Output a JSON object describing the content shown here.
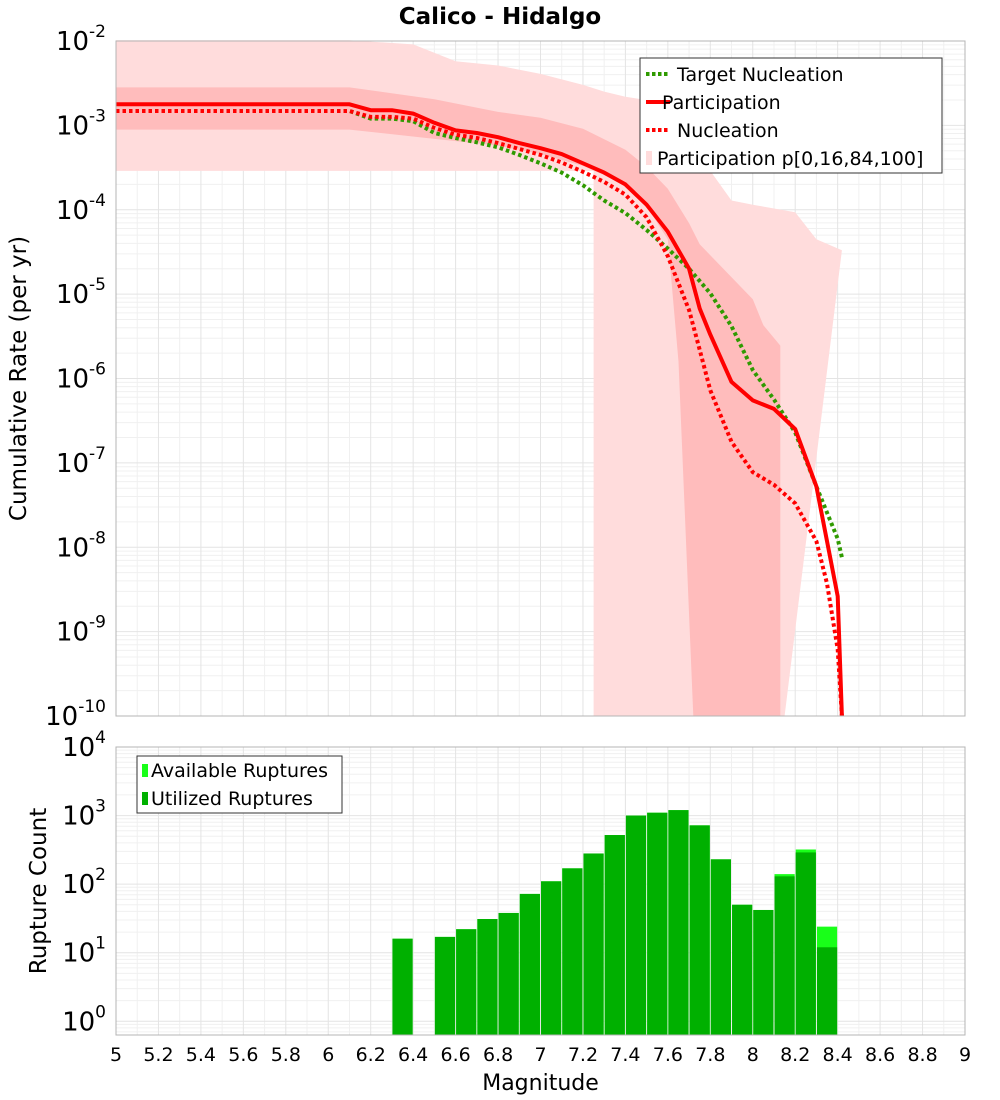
{
  "colors": {
    "target_nucleation": "#2f9a00",
    "participation": "#ff0000",
    "nucleation": "#ff0000",
    "band_outer": "#ffdcdc",
    "band_inner": "#ffbcbc",
    "available_bar": "#19ff19",
    "utilized_bar": "#00b000",
    "grid": "#e4e4e4",
    "grid_minor": "#f0f0f0",
    "plot_border": "#b4b4b4"
  },
  "chart_data": [
    {
      "type": "line",
      "title": "Calico - Hidalgo",
      "xlabel": "",
      "ylabel": "Cumulative Rate (per yr)",
      "xlim": [
        5,
        9
      ],
      "ylim_exp": [
        -10,
        -2
      ],
      "y_scale": "log",
      "y_tick_labels": [
        {
          "e": -2,
          "base": "10",
          "exp": "-2"
        },
        {
          "e": -3,
          "base": "10",
          "exp": "-3"
        },
        {
          "e": -4,
          "base": "10",
          "exp": "-4"
        },
        {
          "e": -5,
          "base": "10",
          "exp": "-5"
        },
        {
          "e": -6,
          "base": "10",
          "exp": "-6"
        },
        {
          "e": -7,
          "base": "10",
          "exp": "-7"
        },
        {
          "e": -8,
          "base": "10",
          "exp": "-8"
        },
        {
          "e": -9,
          "base": "10",
          "exp": "-9"
        },
        {
          "e": -10,
          "base": "10",
          "exp": "-10"
        }
      ],
      "grid": true,
      "legend_position": "top-right",
      "legend": [
        {
          "label": "Target Nucleation",
          "style": "dotted",
          "color_key": "target_nucleation"
        },
        {
          "label": "Participation",
          "style": "solid",
          "color_key": "participation"
        },
        {
          "label": "Nucleation",
          "style": "dotted",
          "color_key": "nucleation"
        },
        {
          "label": "Participation p[0,16,84,100]",
          "style": "band",
          "color_key": "band_outer"
        }
      ],
      "series": [
        {
          "name": "Participation",
          "style": "solid",
          "x": [
            5.0,
            6.1,
            6.2,
            6.3,
            6.4,
            6.5,
            6.6,
            6.7,
            6.8,
            6.9,
            7.0,
            7.1,
            7.2,
            7.3,
            7.4,
            7.5,
            7.6,
            7.7,
            7.75,
            7.8,
            7.9,
            8.0,
            8.1,
            8.2,
            8.3,
            8.4,
            8.42
          ],
          "y_exp": [
            -2.75,
            -2.75,
            -2.82,
            -2.82,
            -2.86,
            -2.97,
            -3.06,
            -3.09,
            -3.14,
            -3.21,
            -3.27,
            -3.34,
            -3.45,
            -3.56,
            -3.7,
            -3.94,
            -4.26,
            -4.7,
            -5.17,
            -5.48,
            -6.04,
            -6.26,
            -6.36,
            -6.6,
            -7.28,
            -8.58,
            -10.0
          ]
        },
        {
          "name": "Nucleation",
          "style": "dotted",
          "x": [
            5.0,
            6.1,
            6.2,
            6.3,
            6.4,
            6.5,
            6.6,
            6.7,
            6.8,
            6.9,
            7.0,
            7.1,
            7.2,
            7.3,
            7.4,
            7.5,
            7.6,
            7.7,
            7.75,
            7.8,
            7.9,
            8.0,
            8.1,
            8.2,
            8.3,
            8.35,
            8.4,
            8.42
          ],
          "y_exp": [
            -2.83,
            -2.83,
            -2.9,
            -2.9,
            -2.92,
            -3.03,
            -3.11,
            -3.15,
            -3.21,
            -3.28,
            -3.35,
            -3.44,
            -3.55,
            -3.67,
            -3.82,
            -4.09,
            -4.55,
            -5.19,
            -5.66,
            -6.14,
            -6.75,
            -7.11,
            -7.26,
            -7.48,
            -7.93,
            -8.43,
            -9.21,
            -10.0
          ]
        },
        {
          "name": "Target Nucleation",
          "style": "dotted",
          "x": [
            5.0,
            6.1,
            6.2,
            6.3,
            6.4,
            6.5,
            6.6,
            6.7,
            6.8,
            6.9,
            7.0,
            7.1,
            7.2,
            7.3,
            7.4,
            7.5,
            7.6,
            7.7,
            7.8,
            7.9,
            8.0,
            8.1,
            8.2,
            8.3,
            8.4,
            8.42
          ],
          "y_exp": [
            -2.83,
            -2.83,
            -2.92,
            -2.92,
            -2.95,
            -3.09,
            -3.15,
            -3.2,
            -3.26,
            -3.35,
            -3.45,
            -3.56,
            -3.71,
            -3.89,
            -4.04,
            -4.24,
            -4.46,
            -4.7,
            -4.99,
            -5.38,
            -5.9,
            -6.25,
            -6.64,
            -7.28,
            -7.9,
            -8.12
          ]
        }
      ],
      "bands": [
        {
          "name": "p0-p100",
          "shade": "outer",
          "x": [
            5.0,
            6.1,
            6.4,
            6.6,
            6.8,
            7.0,
            7.2,
            7.3,
            7.4,
            7.6,
            7.7,
            7.8,
            7.9,
            8.0,
            8.2,
            8.3,
            8.42
          ],
          "upper_exp": [
            -1.99,
            -1.99,
            -2.04,
            -2.24,
            -2.29,
            -2.39,
            -2.52,
            -2.6,
            -2.66,
            -2.74,
            -3.11,
            -3.54,
            -3.89,
            -3.94,
            -4.03,
            -4.35,
            -4.48
          ],
          "lower_x": [
            5.0,
            7.25,
            7.25,
            7.6,
            7.7,
            7.75,
            8.0,
            8.15,
            8.15
          ],
          "lower_exp": [
            -3.54,
            -3.54,
            -10.0,
            -10.0,
            -10.0,
            -10.0,
            -10.0,
            -10.0,
            -10.0
          ]
        },
        {
          "name": "p16-p84",
          "shade": "inner",
          "x": [
            5.0,
            6.1,
            6.5,
            6.8,
            7.0,
            7.2,
            7.4,
            7.5,
            7.6,
            7.7,
            7.75,
            8.0,
            8.05,
            8.13
          ],
          "upper_exp": [
            -2.55,
            -2.55,
            -2.69,
            -2.84,
            -2.91,
            -3.04,
            -3.29,
            -3.49,
            -3.75,
            -4.16,
            -4.41,
            -5.06,
            -5.37,
            -5.61
          ],
          "lower_x": [
            5.0,
            6.1,
            6.5,
            6.8,
            7.0,
            7.2,
            7.4,
            7.5,
            7.6,
            7.65,
            7.72,
            7.72,
            8.13,
            8.13
          ],
          "lower_exp": [
            -3.05,
            -3.05,
            -3.16,
            -3.24,
            -3.34,
            -3.48,
            -3.7,
            -3.96,
            -4.35,
            -5.8,
            -10.0,
            -10.0,
            -10.0,
            -10.0
          ]
        }
      ]
    },
    {
      "type": "bar",
      "title": "",
      "xlabel": "Magnitude",
      "ylabel": "Rupture Count",
      "xlim": [
        5,
        9
      ],
      "x_tick_labels": [
        "5",
        "5.2",
        "5.4",
        "5.6",
        "5.8",
        "6",
        "6.2",
        "6.4",
        "6.6",
        "6.8",
        "7",
        "7.2",
        "7.4",
        "7.6",
        "7.8",
        "8",
        "8.2",
        "8.4",
        "8.6",
        "8.8",
        "9"
      ],
      "ylim_exp": [
        -0.2,
        4
      ],
      "y_scale": "log",
      "y_tick_labels": [
        {
          "e": 4,
          "base": "10",
          "exp": "4"
        },
        {
          "e": 3,
          "base": "10",
          "exp": "3"
        },
        {
          "e": 2,
          "base": "10",
          "exp": "2"
        },
        {
          "e": 1,
          "base": "10",
          "exp": "1"
        },
        {
          "e": 0,
          "base": "10",
          "exp": "0"
        }
      ],
      "grid": true,
      "legend_position": "top-left",
      "legend": [
        {
          "label": "Available Ruptures",
          "color_key": "available_bar"
        },
        {
          "label": "Utilized Ruptures",
          "color_key": "utilized_bar"
        }
      ],
      "bar_width": 0.095,
      "bar_centers": [
        6.35,
        6.55,
        6.65,
        6.75,
        6.85,
        6.95,
        7.05,
        7.15,
        7.25,
        7.35,
        7.45,
        7.55,
        7.65,
        7.75,
        7.85,
        7.95,
        8.05,
        8.15,
        8.25,
        8.35
      ],
      "series": [
        {
          "name": "Available Ruptures",
          "values": [
            16,
            17,
            22,
            31,
            38,
            72,
            110,
            170,
            280,
            520,
            1000,
            1100,
            1200,
            720,
            230,
            50,
            42,
            140,
            320,
            24
          ]
        },
        {
          "name": "Utilized Ruptures",
          "values": [
            16,
            17,
            22,
            31,
            38,
            72,
            110,
            170,
            280,
            520,
            1000,
            1100,
            1200,
            720,
            230,
            50,
            42,
            130,
            290,
            12
          ]
        }
      ]
    }
  ]
}
